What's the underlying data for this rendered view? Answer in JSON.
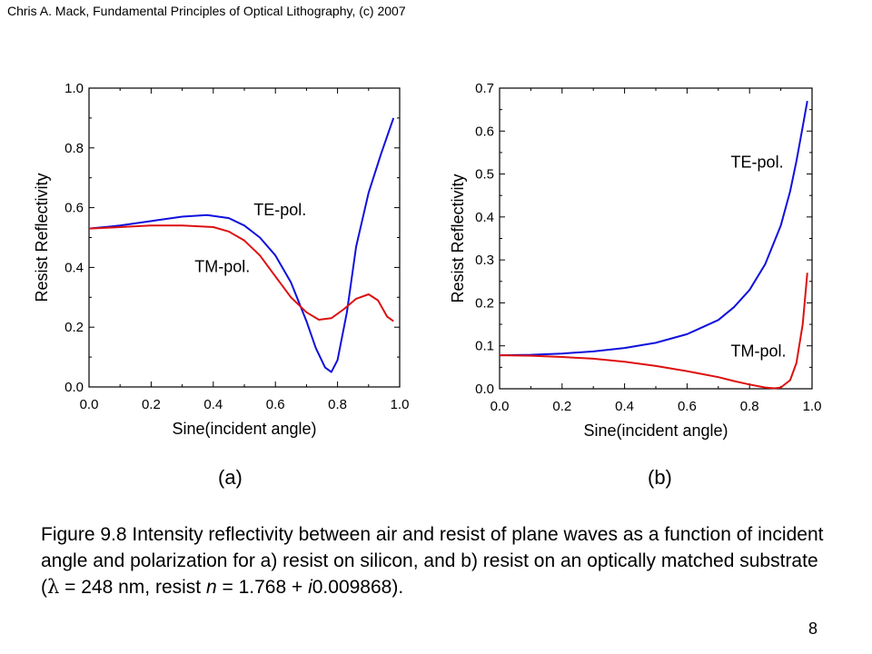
{
  "header": "Chris A. Mack, Fundamental Principles of Optical Lithography, (c) 2007",
  "colors": {
    "te": "#1010dd",
    "tm": "#dd1010"
  },
  "panels": [
    {
      "label": "(a)"
    },
    {
      "label": "(b)"
    }
  ],
  "caption": {
    "prefix": "Figure 9.8  Intensity reflectivity between air and resist of plane waves as a function of incident angle and polarization for a) resist on silicon, and b) resist on an optically matched substrate (",
    "lambda_symbol": "λ",
    "lambda_rest": " = 248 nm, resist ",
    "n_symbol": "n",
    "n_rest": " = 1.768 + ",
    "i_symbol": "i",
    "i_rest": "0.009868)."
  },
  "page_number": "8",
  "chart_data": [
    {
      "type": "line",
      "xlabel": "Sine(incident angle)",
      "ylabel": "Resist Reflectivity",
      "xlim": [
        0,
        1
      ],
      "ylim": [
        0,
        1
      ],
      "xticks": [
        0.0,
        0.2,
        0.4,
        0.6,
        0.8,
        1.0
      ],
      "yticks": [
        0.0,
        0.2,
        0.4,
        0.6,
        0.8,
        1.0
      ],
      "xtick_labels": [
        "0.0",
        "0.2",
        "0.4",
        "0.6",
        "0.8",
        "1.0"
      ],
      "ytick_labels": [
        "0.0",
        "0.2",
        "0.4",
        "0.6",
        "0.8",
        "1.0"
      ],
      "series": [
        {
          "name": "TE-pol.",
          "color": "#1010dd",
          "x": [
            0.0,
            0.1,
            0.2,
            0.3,
            0.38,
            0.45,
            0.5,
            0.55,
            0.6,
            0.65,
            0.7,
            0.73,
            0.76,
            0.78,
            0.8,
            0.83,
            0.86,
            0.9,
            0.94,
            0.98
          ],
          "y": [
            0.53,
            0.54,
            0.555,
            0.57,
            0.575,
            0.565,
            0.54,
            0.5,
            0.44,
            0.35,
            0.22,
            0.13,
            0.065,
            0.05,
            0.09,
            0.25,
            0.47,
            0.65,
            0.78,
            0.9
          ]
        },
        {
          "name": "TM-pol.",
          "color": "#dd1010",
          "x": [
            0.0,
            0.1,
            0.2,
            0.3,
            0.4,
            0.45,
            0.5,
            0.55,
            0.6,
            0.65,
            0.7,
            0.74,
            0.78,
            0.82,
            0.86,
            0.9,
            0.93,
            0.96,
            0.98
          ],
          "y": [
            0.53,
            0.535,
            0.54,
            0.54,
            0.535,
            0.52,
            0.49,
            0.44,
            0.37,
            0.3,
            0.25,
            0.225,
            0.23,
            0.26,
            0.295,
            0.31,
            0.29,
            0.235,
            0.22
          ]
        }
      ],
      "annotations": [
        {
          "text": "TE-pol.",
          "x": 0.53,
          "y": 0.575
        },
        {
          "text": "TM-pol.",
          "x": 0.34,
          "y": 0.385
        }
      ]
    },
    {
      "type": "line",
      "xlabel": "Sine(incident angle)",
      "ylabel": "Resist Reflectivity",
      "xlim": [
        0,
        1
      ],
      "ylim": [
        0,
        0.7
      ],
      "xticks": [
        0.0,
        0.2,
        0.4,
        0.6,
        0.8,
        1.0
      ],
      "yticks": [
        0.0,
        0.1,
        0.2,
        0.3,
        0.4,
        0.5,
        0.6,
        0.7
      ],
      "xtick_labels": [
        "0.0",
        "0.2",
        "0.4",
        "0.6",
        "0.8",
        "1.0"
      ],
      "ytick_labels": [
        "0.0",
        "0.1",
        "0.2",
        "0.3",
        "0.4",
        "0.5",
        "0.6",
        "0.7"
      ],
      "series": [
        {
          "name": "TE-pol.",
          "color": "#1010dd",
          "x": [
            0.0,
            0.1,
            0.2,
            0.3,
            0.4,
            0.5,
            0.6,
            0.7,
            0.75,
            0.8,
            0.85,
            0.9,
            0.93,
            0.95,
            0.97,
            0.985
          ],
          "y": [
            0.078,
            0.079,
            0.082,
            0.087,
            0.095,
            0.107,
            0.127,
            0.16,
            0.19,
            0.23,
            0.29,
            0.38,
            0.46,
            0.53,
            0.61,
            0.67
          ]
        },
        {
          "name": "TM-pol.",
          "color": "#dd1010",
          "x": [
            0.0,
            0.1,
            0.2,
            0.3,
            0.4,
            0.5,
            0.6,
            0.7,
            0.75,
            0.8,
            0.85,
            0.88,
            0.9,
            0.93,
            0.95,
            0.97,
            0.985
          ],
          "y": [
            0.078,
            0.077,
            0.074,
            0.07,
            0.063,
            0.053,
            0.041,
            0.027,
            0.018,
            0.01,
            0.003,
            0.001,
            0.003,
            0.02,
            0.06,
            0.15,
            0.27
          ]
        }
      ],
      "annotations": [
        {
          "text": "TE-pol.",
          "x": 0.74,
          "y": 0.515
        },
        {
          "text": "TM-pol.",
          "x": 0.74,
          "y": 0.075
        }
      ]
    }
  ]
}
